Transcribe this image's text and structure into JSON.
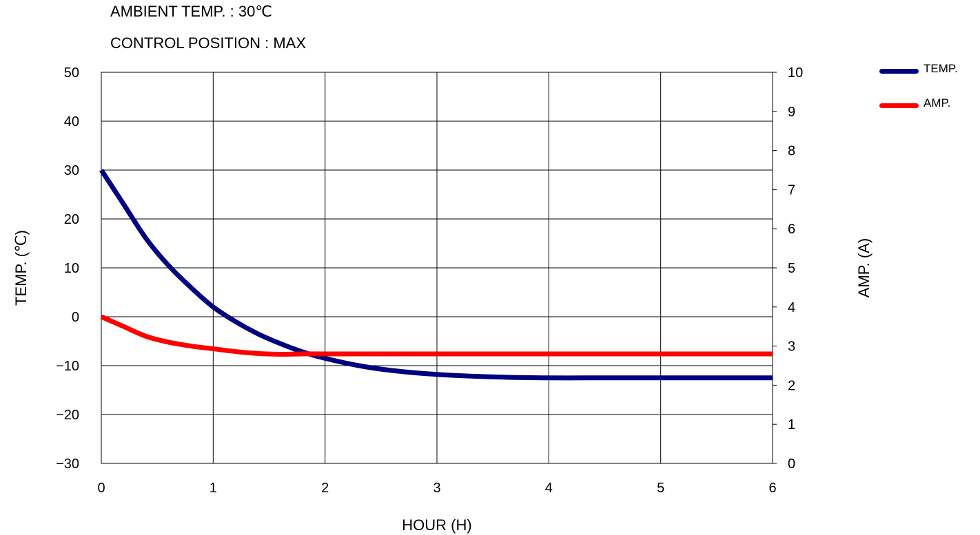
{
  "header": {
    "line1": "AMBIENT TEMP. : 30℃",
    "line2": "CONTROL POSITION : MAX"
  },
  "legend": [
    {
      "label": "TEMP.",
      "color": "#000080"
    },
    {
      "label": "AMP.",
      "color": "#ff0000"
    }
  ],
  "chart_data": {
    "type": "line",
    "xlabel": "HOUR (H)",
    "ylabel": "TEMP. (℃)",
    "y2label": "AMP. (A)",
    "xlim": [
      0,
      6
    ],
    "ylim": [
      -30,
      50
    ],
    "y2lim": [
      0,
      10
    ],
    "x_ticks": [
      "0",
      "1",
      "2",
      "3",
      "4",
      "5",
      "6"
    ],
    "y_ticks": [
      "50",
      "40",
      "30",
      "20",
      "10",
      "0",
      "−10",
      "−20",
      "−30"
    ],
    "y2_ticks": [
      "10",
      "9",
      "8",
      "7",
      "6",
      "5",
      "4",
      "3",
      "2",
      "1",
      "0"
    ],
    "grid": true,
    "legend_position": "top-right, outside plot",
    "series": [
      {
        "name": "TEMP.",
        "axis": "left",
        "color": "#000080",
        "x": [
          0,
          0.2,
          0.4,
          0.6,
          0.8,
          1.0,
          1.2,
          1.4,
          1.6,
          1.8,
          2.0,
          2.3,
          2.6,
          3.0,
          3.5,
          4.0,
          4.5,
          5.0,
          5.5,
          6.0
        ],
        "y": [
          30,
          23,
          16,
          10.5,
          6,
          2,
          -1,
          -3.5,
          -5.5,
          -7.2,
          -8.5,
          -10,
          -11,
          -11.8,
          -12.3,
          -12.5,
          -12.5,
          -12.5,
          -12.5,
          -12.5
        ]
      },
      {
        "name": "AMP.",
        "axis": "right",
        "color": "#ff0000",
        "x": [
          0,
          0.2,
          0.4,
          0.6,
          0.8,
          1.0,
          1.2,
          1.4,
          1.6,
          1.8,
          2.0,
          3.0,
          4.0,
          5.0,
          6.0
        ],
        "y": [
          3.75,
          3.5,
          3.25,
          3.1,
          3.0,
          2.93,
          2.86,
          2.81,
          2.79,
          2.8,
          2.8,
          2.8,
          2.8,
          2.8,
          2.8
        ]
      }
    ]
  }
}
